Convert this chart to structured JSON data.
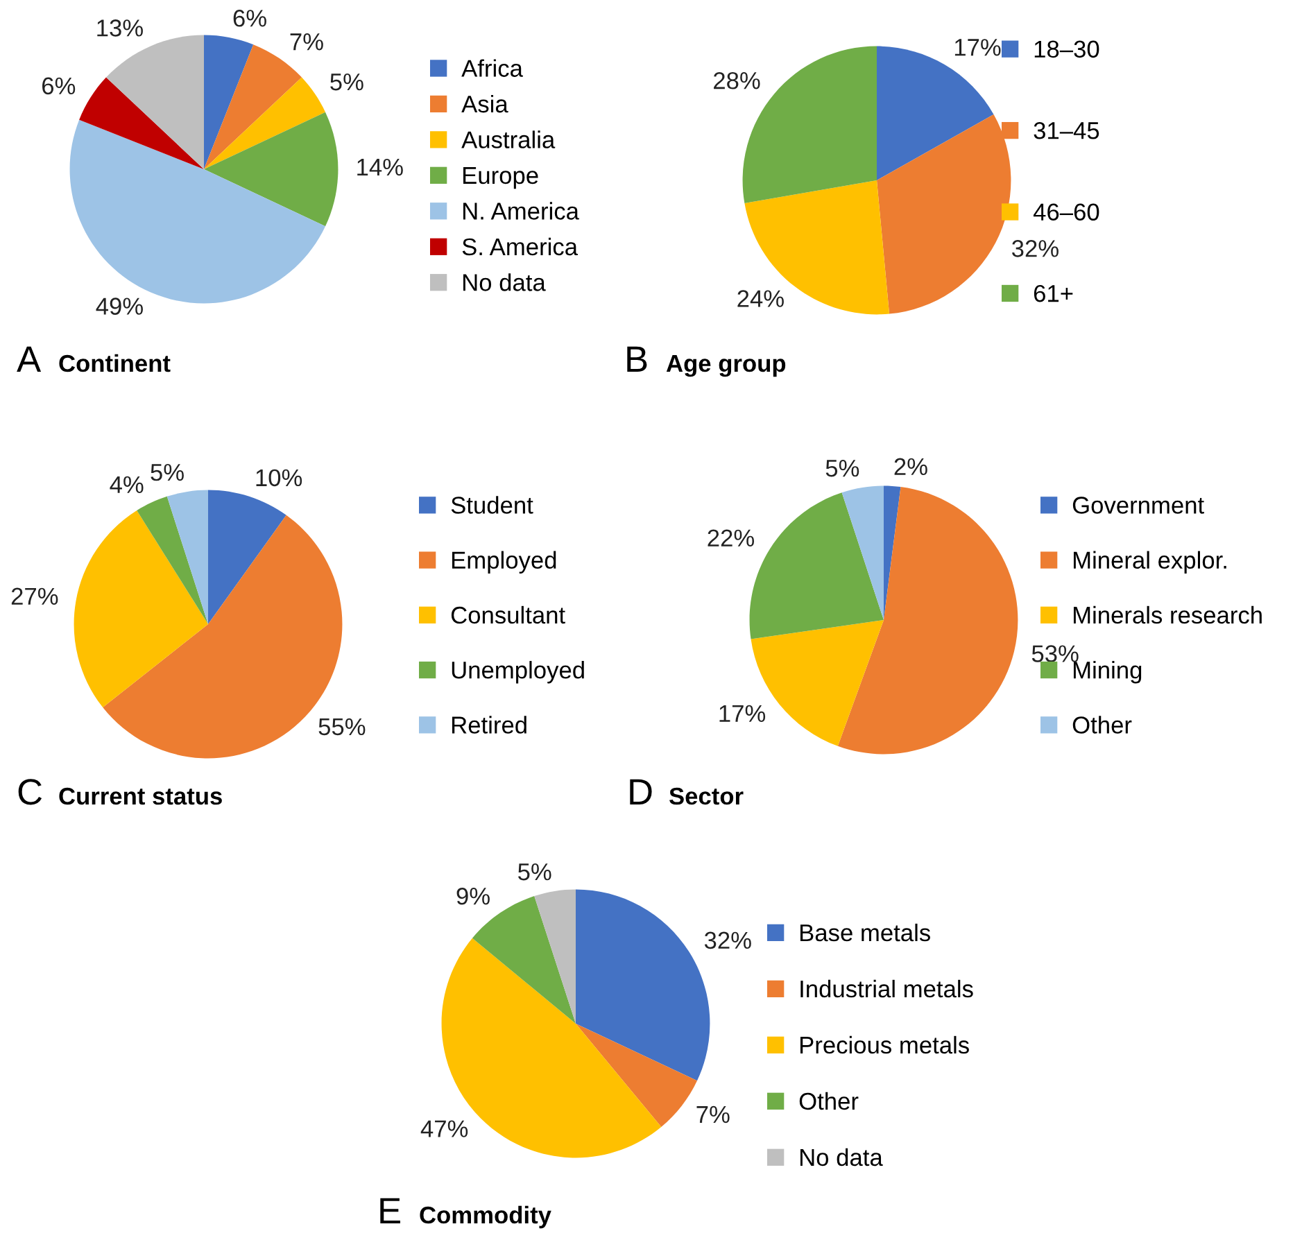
{
  "chart_data": [
    {
      "type": "pie",
      "title": "Continent",
      "annotations": [
        "A"
      ],
      "legend": "right",
      "categories": [
        "Africa",
        "Asia",
        "Australia",
        "Europe",
        "N. America",
        "S. America",
        "No data"
      ],
      "values": [
        6,
        7,
        5,
        14,
        49,
        6,
        13
      ],
      "value_labels": [
        "6%",
        "7%",
        "5%",
        "14%",
        "49%",
        "6%",
        "13%"
      ],
      "colors": [
        "#4472c4",
        "#ed7d31",
        "#ffc000",
        "#70ad47",
        "#9dc3e6",
        "#c00000",
        "#bfbfbf"
      ]
    },
    {
      "type": "pie",
      "title": "Age group",
      "annotations": [
        "B"
      ],
      "legend": "right",
      "categories": [
        "18–30",
        "31–45",
        "46–60",
        "61+"
      ],
      "values": [
        17,
        32,
        24,
        28
      ],
      "value_labels": [
        "17%",
        "32%",
        "24%",
        "28%"
      ],
      "colors": [
        "#4472c4",
        "#ed7d31",
        "#ffc000",
        "#70ad47"
      ]
    },
    {
      "type": "pie",
      "title": "Current status",
      "annotations": [
        "C"
      ],
      "legend": "right",
      "categories": [
        "Student",
        "Employed",
        "Consultant",
        "Unemployed",
        "Retired"
      ],
      "values": [
        10,
        55,
        27,
        4,
        5
      ],
      "value_labels": [
        "10%",
        "55%",
        "27%",
        "4%",
        "5%"
      ],
      "colors": [
        "#4472c4",
        "#ed7d31",
        "#ffc000",
        "#70ad47",
        "#9dc3e6"
      ]
    },
    {
      "type": "pie",
      "title": "Sector",
      "annotations": [
        "D"
      ],
      "legend": "right",
      "categories": [
        "Government",
        "Mineral explor.",
        "Minerals research",
        "Mining",
        "Other"
      ],
      "values": [
        2,
        53,
        17,
        22,
        5
      ],
      "value_labels": [
        "2%",
        "53%",
        "17%",
        "22%",
        "5%"
      ],
      "colors": [
        "#4472c4",
        "#ed7d31",
        "#ffc000",
        "#70ad47",
        "#9dc3e6"
      ]
    },
    {
      "type": "pie",
      "title": "Commodity",
      "annotations": [
        "E"
      ],
      "legend": "right",
      "categories": [
        "Base metals",
        "Industrial metals",
        "Precious metals",
        "Other",
        "No data"
      ],
      "values": [
        32,
        7,
        47,
        9,
        5
      ],
      "value_labels": [
        "32%",
        "7%",
        "47%",
        "9%",
        "5%"
      ],
      "colors": [
        "#4472c4",
        "#ed7d31",
        "#ffc000",
        "#70ad47",
        "#bfbfbf"
      ]
    }
  ]
}
